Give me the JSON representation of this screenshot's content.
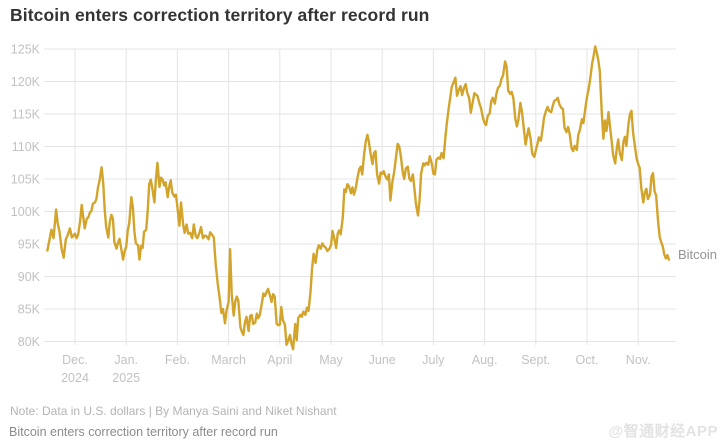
{
  "page": {
    "title": "Bitcoin enters correction territory after record run",
    "note": "Note: Data in U.S. dollars | By Manya Saini and Niket Nishant",
    "caption": "Bitcoin enters correction territory after record run",
    "watermark": "@智通财经APP"
  },
  "chart_data": {
    "type": "line",
    "title": "Bitcoin enters correction territory after record run",
    "series_label": "Bitcoin",
    "unit": "U.S. dollars (thousands)",
    "line_color": "#D2A42C",
    "grid_color": "#E4E4E4",
    "axis_label_color": "#C2C2C2",
    "legend_position": "right-end-of-line",
    "grid": true,
    "y_axis": {
      "min": 80,
      "max": 125,
      "tick_step": 5,
      "ticks": [
        {
          "value": 125,
          "label": "125K"
        },
        {
          "value": 120,
          "label": "120K"
        },
        {
          "value": 115,
          "label": "115K"
        },
        {
          "value": 110,
          "label": "110K"
        },
        {
          "value": 105,
          "label": "105K"
        },
        {
          "value": 100,
          "label": "100K"
        },
        {
          "value": 95,
          "label": "95K"
        },
        {
          "value": 90,
          "label": "90K"
        },
        {
          "value": 85,
          "label": "85K"
        },
        {
          "value": 80,
          "label": "80K"
        }
      ]
    },
    "x_axis": {
      "months": [
        {
          "label": "Dec.",
          "sublabel": "2024"
        },
        {
          "label": "Jan.",
          "sublabel": "2025"
        },
        {
          "label": "Feb."
        },
        {
          "label": "March"
        },
        {
          "label": "April"
        },
        {
          "label": "May"
        },
        {
          "label": "June"
        },
        {
          "label": "July"
        },
        {
          "label": "Aug."
        },
        {
          "label": "Sept."
        },
        {
          "label": "Oct."
        },
        {
          "label": "Nov."
        }
      ]
    },
    "points_format": "[months_after_Dec1_2024, price_in_thousands_USD]",
    "points": [
      [
        -0.54,
        94.0
      ],
      [
        -0.5,
        95.6
      ],
      [
        -0.46,
        97.2
      ],
      [
        -0.42,
        95.9
      ],
      [
        -0.37,
        100.3
      ],
      [
        -0.34,
        98.3
      ],
      [
        -0.3,
        96.8
      ],
      [
        -0.26,
        94.2
      ],
      [
        -0.22,
        92.9
      ],
      [
        -0.18,
        95.7
      ],
      [
        -0.14,
        96.4
      ],
      [
        -0.1,
        97.4
      ],
      [
        -0.06,
        96.0
      ],
      [
        0.0,
        96.6
      ],
      [
        0.03,
        95.9
      ],
      [
        0.06,
        96.4
      ],
      [
        0.1,
        98.5
      ],
      [
        0.13,
        101.0
      ],
      [
        0.16,
        99.2
      ],
      [
        0.19,
        97.4
      ],
      [
        0.23,
        98.9
      ],
      [
        0.26,
        99.1
      ],
      [
        0.29,
        99.8
      ],
      [
        0.32,
        100.1
      ],
      [
        0.35,
        101.2
      ],
      [
        0.39,
        101.4
      ],
      [
        0.42,
        102.0
      ],
      [
        0.45,
        103.7
      ],
      [
        0.48,
        104.8
      ],
      [
        0.52,
        106.8
      ],
      [
        0.55,
        104.4
      ],
      [
        0.58,
        100.3
      ],
      [
        0.61,
        97.6
      ],
      [
        0.65,
        96.0
      ],
      [
        0.68,
        98.4
      ],
      [
        0.71,
        99.5
      ],
      [
        0.74,
        98.9
      ],
      [
        0.77,
        95.3
      ],
      [
        0.81,
        94.3
      ],
      [
        0.84,
        95.2
      ],
      [
        0.87,
        95.8
      ],
      [
        0.9,
        94.4
      ],
      [
        0.94,
        92.6
      ],
      [
        0.97,
        93.9
      ],
      [
        1.0,
        94.6
      ],
      [
        1.03,
        97.0
      ],
      [
        1.06,
        98.3
      ],
      [
        1.1,
        102.2
      ],
      [
        1.13,
        100.6
      ],
      [
        1.16,
        96.9
      ],
      [
        1.19,
        95.1
      ],
      [
        1.23,
        94.8
      ],
      [
        1.26,
        92.6
      ],
      [
        1.29,
        94.7
      ],
      [
        1.32,
        94.4
      ],
      [
        1.35,
        96.9
      ],
      [
        1.39,
        97.2
      ],
      [
        1.42,
        100.1
      ],
      [
        1.45,
        104.2
      ],
      [
        1.48,
        104.9
      ],
      [
        1.52,
        103.1
      ],
      [
        1.55,
        101.4
      ],
      [
        1.58,
        104.9
      ],
      [
        1.61,
        107.5
      ],
      [
        1.65,
        103.8
      ],
      [
        1.68,
        105.2
      ],
      [
        1.71,
        104.9
      ],
      [
        1.74,
        104.0
      ],
      [
        1.77,
        104.5
      ],
      [
        1.81,
        102.2
      ],
      [
        1.84,
        103.8
      ],
      [
        1.87,
        104.8
      ],
      [
        1.9,
        102.9
      ],
      [
        1.94,
        102.3
      ],
      [
        1.97,
        102.6
      ],
      [
        2.0,
        100.7
      ],
      [
        2.04,
        97.8
      ],
      [
        2.07,
        101.4
      ],
      [
        2.11,
        98.2
      ],
      [
        2.14,
        96.7
      ],
      [
        2.18,
        98.0
      ],
      [
        2.21,
        96.6
      ],
      [
        2.25,
        96.7
      ],
      [
        2.29,
        95.9
      ],
      [
        2.32,
        98.0
      ],
      [
        2.36,
        96.2
      ],
      [
        2.39,
        95.9
      ],
      [
        2.43,
        96.7
      ],
      [
        2.46,
        97.6
      ],
      [
        2.5,
        95.9
      ],
      [
        2.54,
        96.3
      ],
      [
        2.57,
        96.2
      ],
      [
        2.61,
        95.7
      ],
      [
        2.64,
        96.8
      ],
      [
        2.68,
        96.4
      ],
      [
        2.71,
        96.0
      ],
      [
        2.75,
        91.7
      ],
      [
        2.79,
        88.8
      ],
      [
        2.82,
        87.0
      ],
      [
        2.86,
        84.4
      ],
      [
        2.89,
        85.0
      ],
      [
        2.93,
        82.8
      ],
      [
        2.96,
        84.8
      ],
      [
        3.0,
        86.1
      ],
      [
        3.03,
        94.2
      ],
      [
        3.06,
        87.3
      ],
      [
        3.1,
        84.0
      ],
      [
        3.13,
        86.2
      ],
      [
        3.16,
        86.9
      ],
      [
        3.19,
        86.3
      ],
      [
        3.23,
        82.2
      ],
      [
        3.26,
        81.5
      ],
      [
        3.29,
        81.0
      ],
      [
        3.32,
        83.0
      ],
      [
        3.35,
        83.8
      ],
      [
        3.39,
        81.6
      ],
      [
        3.42,
        83.9
      ],
      [
        3.45,
        84.1
      ],
      [
        3.48,
        82.7
      ],
      [
        3.52,
        82.9
      ],
      [
        3.55,
        84.3
      ],
      [
        3.58,
        83.6
      ],
      [
        3.61,
        84.1
      ],
      [
        3.65,
        85.9
      ],
      [
        3.68,
        87.4
      ],
      [
        3.71,
        87.0
      ],
      [
        3.74,
        87.6
      ],
      [
        3.77,
        88.1
      ],
      [
        3.81,
        87.0
      ],
      [
        3.84,
        86.1
      ],
      [
        3.87,
        87.3
      ],
      [
        3.9,
        86.9
      ],
      [
        3.94,
        82.7
      ],
      [
        3.97,
        82.5
      ],
      [
        4.0,
        82.6
      ],
      [
        4.03,
        85.3
      ],
      [
        4.06,
        83.3
      ],
      [
        4.1,
        82.6
      ],
      [
        4.13,
        79.5
      ],
      [
        4.16,
        80.0
      ],
      [
        4.2,
        81.0
      ],
      [
        4.23,
        79.6
      ],
      [
        4.26,
        78.8
      ],
      [
        4.3,
        82.7
      ],
      [
        4.33,
        80.2
      ],
      [
        4.36,
        83.6
      ],
      [
        4.4,
        84.1
      ],
      [
        4.43,
        83.8
      ],
      [
        4.46,
        84.6
      ],
      [
        4.5,
        84.1
      ],
      [
        4.53,
        85.2
      ],
      [
        4.56,
        84.7
      ],
      [
        4.6,
        87.6
      ],
      [
        4.63,
        91.3
      ],
      [
        4.66,
        93.5
      ],
      [
        4.7,
        92.1
      ],
      [
        4.73,
        94.0
      ],
      [
        4.76,
        94.8
      ],
      [
        4.8,
        94.3
      ],
      [
        4.83,
        95.1
      ],
      [
        4.86,
        94.7
      ],
      [
        4.9,
        94.4
      ],
      [
        4.93,
        93.9
      ],
      [
        4.97,
        94.3
      ],
      [
        5.0,
        94.8
      ],
      [
        5.03,
        97.0
      ],
      [
        5.06,
        96.0
      ],
      [
        5.1,
        94.4
      ],
      [
        5.13,
        96.6
      ],
      [
        5.16,
        97.1
      ],
      [
        5.19,
        96.5
      ],
      [
        5.23,
        99.1
      ],
      [
        5.26,
        103.4
      ],
      [
        5.29,
        103.0
      ],
      [
        5.32,
        104.2
      ],
      [
        5.35,
        103.9
      ],
      [
        5.39,
        102.8
      ],
      [
        5.42,
        103.7
      ],
      [
        5.45,
        102.6
      ],
      [
        5.48,
        103.5
      ],
      [
        5.52,
        105.3
      ],
      [
        5.55,
        106.5
      ],
      [
        5.58,
        106.9
      ],
      [
        5.61,
        105.7
      ],
      [
        5.65,
        109.1
      ],
      [
        5.68,
        110.8
      ],
      [
        5.71,
        111.8
      ],
      [
        5.74,
        110.7
      ],
      [
        5.77,
        109.1
      ],
      [
        5.81,
        107.3
      ],
      [
        5.84,
        109.0
      ],
      [
        5.87,
        109.3
      ],
      [
        5.9,
        105.7
      ],
      [
        5.94,
        104.3
      ],
      [
        5.97,
        106.0
      ],
      [
        6.0,
        105.8
      ],
      [
        6.03,
        106.2
      ],
      [
        6.06,
        105.5
      ],
      [
        6.1,
        104.9
      ],
      [
        6.13,
        105.7
      ],
      [
        6.16,
        101.7
      ],
      [
        6.2,
        104.6
      ],
      [
        6.23,
        105.9
      ],
      [
        6.26,
        107.7
      ],
      [
        6.3,
        110.4
      ],
      [
        6.33,
        110.1
      ],
      [
        6.36,
        108.8
      ],
      [
        6.4,
        106.1
      ],
      [
        6.43,
        105.0
      ],
      [
        6.46,
        106.6
      ],
      [
        6.5,
        106.9
      ],
      [
        6.53,
        105.1
      ],
      [
        6.56,
        104.7
      ],
      [
        6.6,
        105.7
      ],
      [
        6.63,
        103.4
      ],
      [
        6.66,
        101.1
      ],
      [
        6.7,
        99.4
      ],
      [
        6.73,
        101.8
      ],
      [
        6.76,
        105.8
      ],
      [
        6.8,
        107.4
      ],
      [
        6.83,
        107.1
      ],
      [
        6.86,
        107.5
      ],
      [
        6.9,
        107.2
      ],
      [
        6.93,
        108.5
      ],
      [
        6.97,
        107.3
      ],
      [
        7.0,
        105.8
      ],
      [
        7.03,
        105.7
      ],
      [
        7.06,
        108.0
      ],
      [
        7.1,
        108.3
      ],
      [
        7.13,
        108.1
      ],
      [
        7.16,
        109.0
      ],
      [
        7.2,
        108.2
      ],
      [
        7.23,
        111.1
      ],
      [
        7.26,
        113.4
      ],
      [
        7.3,
        116.0
      ],
      [
        7.33,
        117.6
      ],
      [
        7.36,
        119.2
      ],
      [
        7.4,
        120.0
      ],
      [
        7.43,
        120.6
      ],
      [
        7.46,
        117.8
      ],
      [
        7.5,
        118.8
      ],
      [
        7.53,
        119.3
      ],
      [
        7.56,
        117.9
      ],
      [
        7.6,
        119.1
      ],
      [
        7.63,
        119.6
      ],
      [
        7.66,
        118.3
      ],
      [
        7.7,
        117.4
      ],
      [
        7.73,
        115.2
      ],
      [
        7.76,
        116.5
      ],
      [
        7.8,
        118.2
      ],
      [
        7.83,
        118.0
      ],
      [
        7.86,
        117.8
      ],
      [
        7.9,
        116.6
      ],
      [
        7.93,
        115.9
      ],
      [
        7.97,
        114.3
      ],
      [
        8.0,
        113.6
      ],
      [
        8.03,
        113.3
      ],
      [
        8.06,
        114.7
      ],
      [
        8.1,
        115.1
      ],
      [
        8.13,
        117.0
      ],
      [
        8.16,
        117.5
      ],
      [
        8.2,
        116.6
      ],
      [
        8.23,
        118.1
      ],
      [
        8.26,
        119.0
      ],
      [
        8.3,
        119.4
      ],
      [
        8.33,
        120.4
      ],
      [
        8.36,
        120.9
      ],
      [
        8.4,
        123.1
      ],
      [
        8.43,
        122.3
      ],
      [
        8.46,
        118.6
      ],
      [
        8.5,
        118.1
      ],
      [
        8.53,
        118.4
      ],
      [
        8.56,
        117.5
      ],
      [
        8.6,
        114.3
      ],
      [
        8.63,
        113.1
      ],
      [
        8.66,
        114.1
      ],
      [
        8.7,
        116.7
      ],
      [
        8.73,
        115.3
      ],
      [
        8.76,
        113.2
      ],
      [
        8.8,
        110.3
      ],
      [
        8.83,
        111.6
      ],
      [
        8.86,
        112.8
      ],
      [
        8.9,
        111.1
      ],
      [
        8.93,
        108.9
      ],
      [
        8.97,
        108.4
      ],
      [
        9.0,
        109.4
      ],
      [
        9.03,
        110.3
      ],
      [
        9.06,
        111.4
      ],
      [
        9.1,
        110.9
      ],
      [
        9.13,
        112.6
      ],
      [
        9.16,
        114.4
      ],
      [
        9.2,
        115.5
      ],
      [
        9.23,
        116.1
      ],
      [
        9.26,
        115.5
      ],
      [
        9.3,
        115.3
      ],
      [
        9.33,
        116.2
      ],
      [
        9.36,
        117.0
      ],
      [
        9.4,
        117.2
      ],
      [
        9.43,
        117.5
      ],
      [
        9.46,
        116.5
      ],
      [
        9.5,
        115.9
      ],
      [
        9.53,
        115.8
      ],
      [
        9.56,
        112.9
      ],
      [
        9.6,
        112.2
      ],
      [
        9.63,
        113.0
      ],
      [
        9.66,
        112.0
      ],
      [
        9.7,
        109.7
      ],
      [
        9.73,
        109.3
      ],
      [
        9.76,
        110.1
      ],
      [
        9.8,
        109.5
      ],
      [
        9.83,
        111.8
      ],
      [
        9.86,
        112.5
      ],
      [
        9.9,
        114.2
      ],
      [
        9.93,
        113.6
      ],
      [
        9.97,
        116.1
      ],
      [
        10.0,
        117.6
      ],
      [
        10.03,
        118.7
      ],
      [
        10.06,
        120.3
      ],
      [
        10.1,
        122.7
      ],
      [
        10.13,
        124.0
      ],
      [
        10.16,
        125.4
      ],
      [
        10.19,
        124.5
      ],
      [
        10.22,
        123.3
      ],
      [
        10.25,
        121.6
      ],
      [
        10.29,
        115.1
      ],
      [
        10.32,
        111.2
      ],
      [
        10.35,
        114.0
      ],
      [
        10.38,
        112.4
      ],
      [
        10.42,
        115.3
      ],
      [
        10.45,
        113.1
      ],
      [
        10.48,
        110.9
      ],
      [
        10.51,
        108.7
      ],
      [
        10.55,
        107.4
      ],
      [
        10.58,
        109.6
      ],
      [
        10.61,
        111.1
      ],
      [
        10.64,
        109.0
      ],
      [
        10.68,
        107.9
      ],
      [
        10.71,
        110.7
      ],
      [
        10.74,
        111.5
      ],
      [
        10.77,
        110.1
      ],
      [
        10.81,
        113.5
      ],
      [
        10.84,
        115.0
      ],
      [
        10.87,
        115.5
      ],
      [
        10.9,
        112.1
      ],
      [
        10.93,
        110.4
      ],
      [
        10.97,
        108.1
      ],
      [
        11.0,
        107.3
      ],
      [
        11.03,
        106.7
      ],
      [
        11.06,
        103.6
      ],
      [
        11.1,
        101.4
      ],
      [
        11.13,
        103.0
      ],
      [
        11.16,
        103.5
      ],
      [
        11.19,
        101.9
      ],
      [
        11.23,
        102.6
      ],
      [
        11.26,
        105.4
      ],
      [
        11.29,
        105.9
      ],
      [
        11.32,
        103.1
      ],
      [
        11.35,
        102.5
      ],
      [
        11.39,
        98.3
      ],
      [
        11.42,
        96.1
      ],
      [
        11.45,
        95.3
      ],
      [
        11.48,
        94.6
      ],
      [
        11.51,
        93.4
      ],
      [
        11.54,
        92.8
      ],
      [
        11.57,
        93.3
      ],
      [
        11.6,
        92.6
      ]
    ]
  }
}
